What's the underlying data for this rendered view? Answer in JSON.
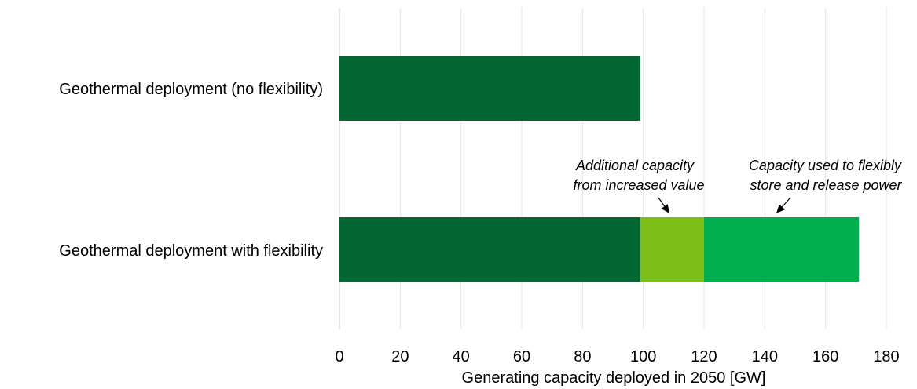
{
  "chart_data": {
    "type": "bar",
    "orientation": "horizontal",
    "stacked": true,
    "categories": [
      "Geothermal deployment (no flexibility)",
      "Geothermal deployment with flexibility"
    ],
    "series": [
      {
        "values": [
          99,
          99
        ],
        "color": "#026732"
      },
      {
        "values": [
          0,
          21
        ],
        "color": "#7dc01a"
      },
      {
        "values": [
          0,
          51
        ],
        "color": "#00ae4e"
      }
    ],
    "xlabel": "Generating capacity deployed in 2050 [GW]",
    "xlim": [
      0,
      180
    ],
    "xticks": [
      0,
      20,
      40,
      60,
      80,
      100,
      120,
      140,
      160,
      180
    ],
    "grid": "vertical",
    "annotations": [
      {
        "lines": [
          "Additional capacity",
          "from increased value"
        ],
        "points_to_category": 1,
        "points_to_series": 1
      },
      {
        "lines": [
          "Capacity used to flexibly",
          "store and release power"
        ],
        "points_to_category": 1,
        "points_to_series": 2
      }
    ],
    "colors": {
      "grid": "#e3e3e3",
      "text": "#000000"
    }
  }
}
